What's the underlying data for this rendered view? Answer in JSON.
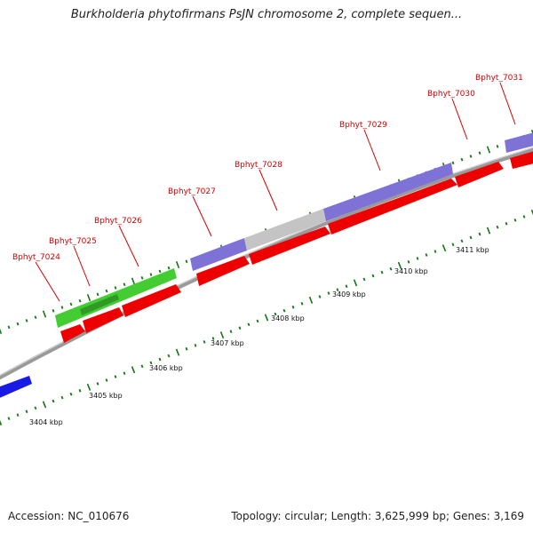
{
  "title": "Burkholderia phytofirmans PsJN chromosome 2, complete sequen...",
  "footer": {
    "accession": "Accession: NC_010676",
    "summary": "Topology: circular; Length: 3,625,999 bp; Genes: 3,169"
  },
  "colors": {
    "backbone": "#8a8a8a",
    "cds_red": "#ee0000",
    "feature_purple": "#7f72d6",
    "feature_green": "#44cc33",
    "feature_grey": "#c4c4c4",
    "feature_blue": "#1a1ae6",
    "tick_green": "#117711",
    "label_red": "#d40000"
  },
  "gene_labels": [
    "Bphyt_7024",
    "Bphyt_7025",
    "Bphyt_7026",
    "Bphyt_7027",
    "Bphyt_7028",
    "Bphyt_7029",
    "Bphyt_7030",
    "Bphyt_7031"
  ],
  "kbp_labels": [
    "3404 kbp",
    "3405 kbp",
    "3406 kbp",
    "3407 kbp",
    "3408 kbp",
    "3409 kbp",
    "3410 kbp",
    "3411 kbp"
  ]
}
